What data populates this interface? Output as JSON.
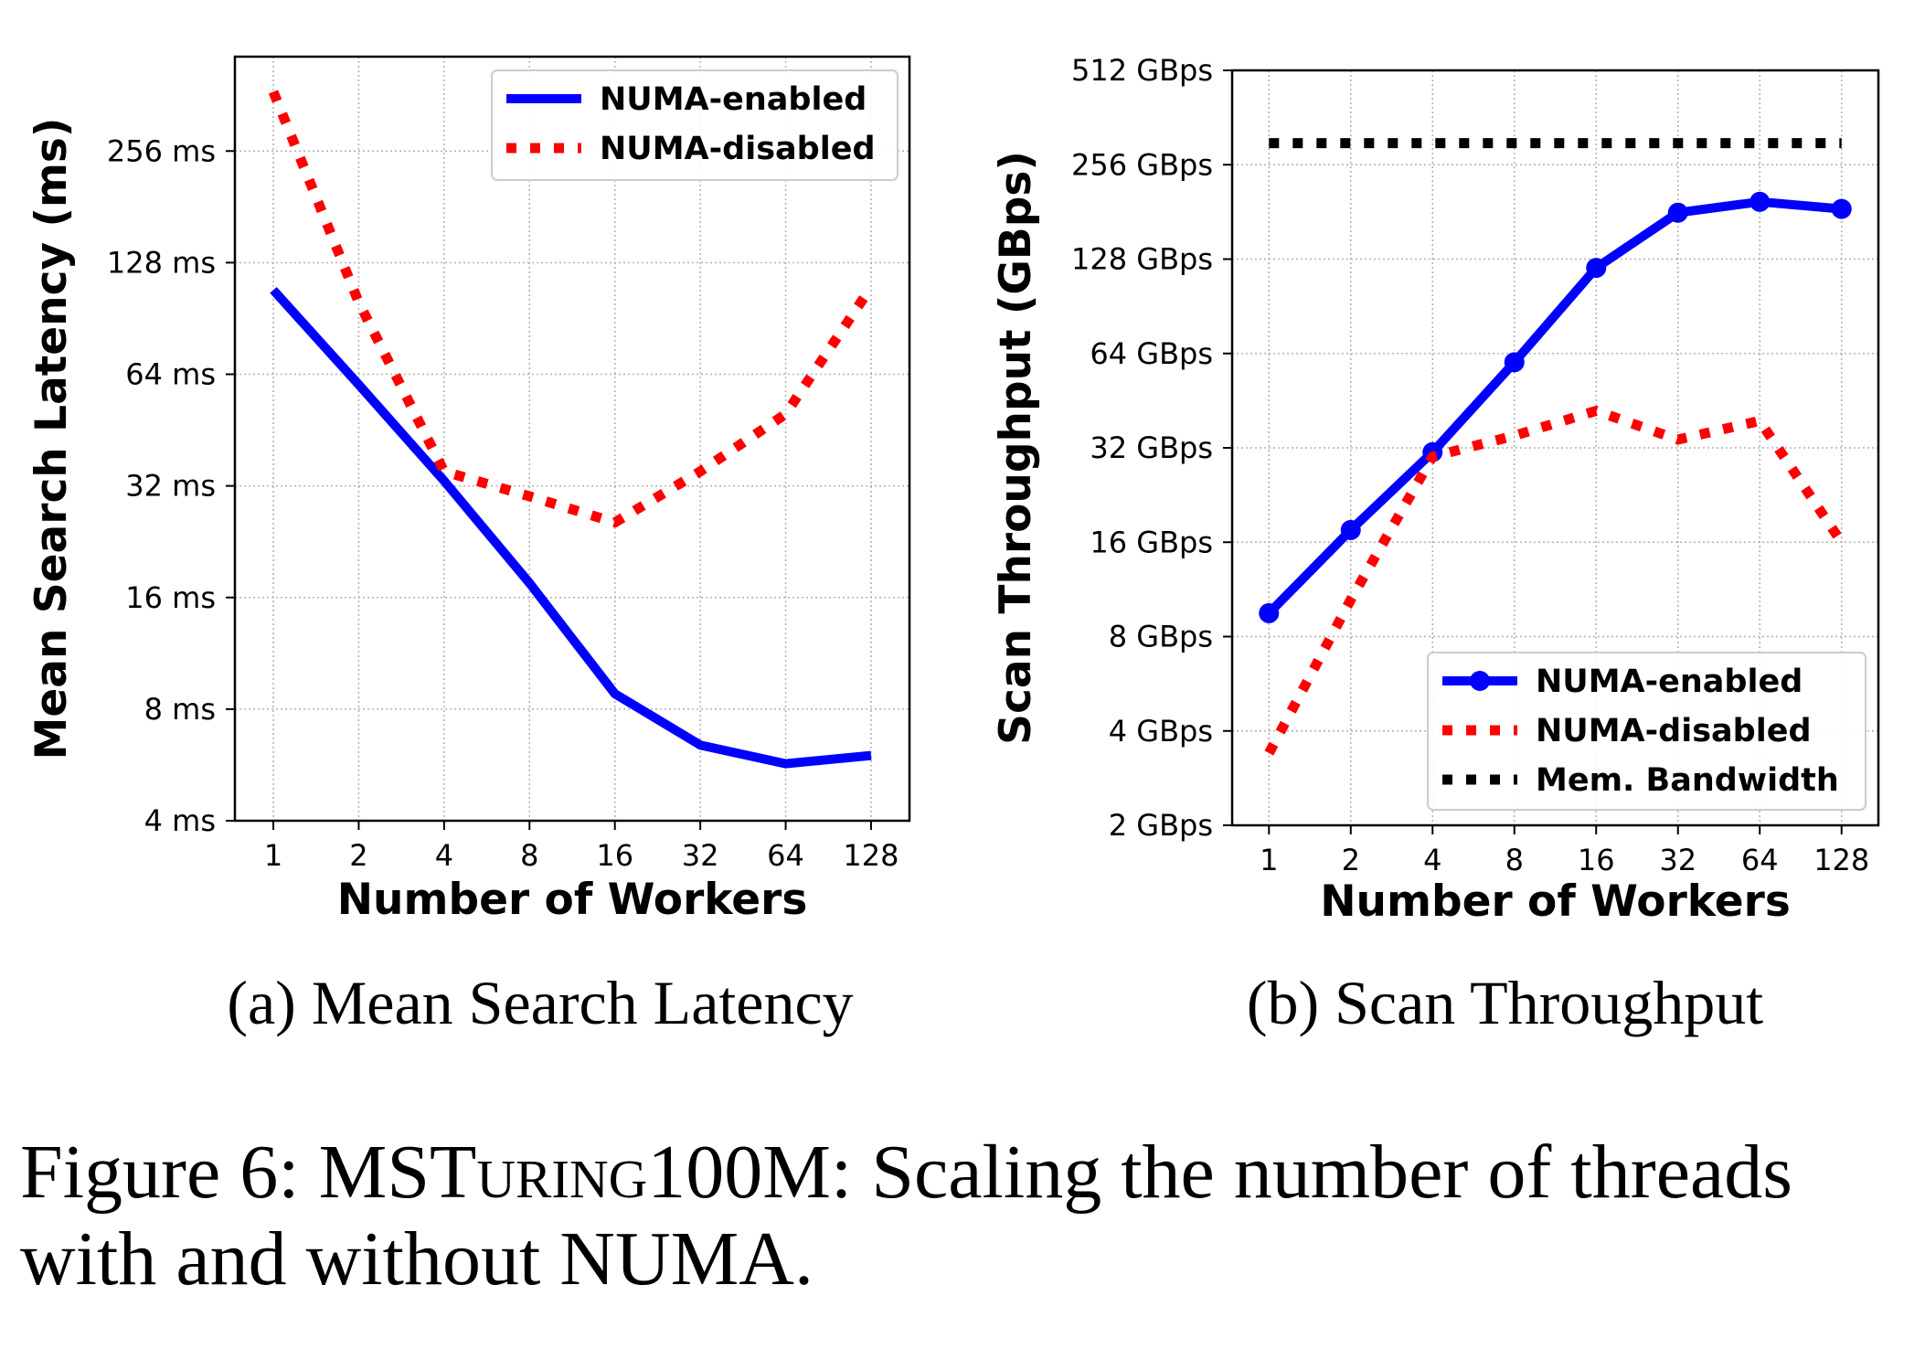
{
  "chart_data": [
    {
      "type": "line",
      "caption": "(a) Mean Search Latency",
      "xlabel": "Number of Workers",
      "ylabel": "Mean Search Latency (ms)",
      "x_scale": "log2",
      "y_scale": "log2",
      "x": [
        1,
        2,
        4,
        8,
        16,
        32,
        64,
        128
      ],
      "x_tick_labels": [
        "1",
        "2",
        "4",
        "8",
        "16",
        "32",
        "64",
        "128"
      ],
      "y_ticks": [
        4,
        8,
        16,
        32,
        64,
        128,
        256
      ],
      "y_tick_labels": [
        "4 ms",
        "8 ms",
        "16 ms",
        "32 ms",
        "64 ms",
        "128 ms",
        "256 ms"
      ],
      "ylim": [
        4,
        460
      ],
      "grid": true,
      "legend_position": "top-right",
      "series": [
        {
          "name": "NUMA-enabled",
          "color": "#0000ff",
          "style": "solid",
          "markers": false,
          "values": [
            108,
            60,
            33,
            17.5,
            8.8,
            6.4,
            5.7,
            6.0
          ]
        },
        {
          "name": "NUMA-disabled",
          "color": "#ff0000",
          "style": "dotted",
          "markers": false,
          "values": [
            370,
            100,
            35,
            30,
            25.5,
            35,
            50,
            110
          ]
        }
      ]
    },
    {
      "type": "line",
      "caption": "(b) Scan Throughput",
      "xlabel": "Number of Workers",
      "ylabel": "Scan Throughput (GBps)",
      "x_scale": "log2",
      "y_scale": "log2",
      "x": [
        1,
        2,
        4,
        8,
        16,
        32,
        64,
        128
      ],
      "x_tick_labels": [
        "1",
        "2",
        "4",
        "8",
        "16",
        "32",
        "64",
        "128"
      ],
      "y_ticks": [
        2,
        4,
        8,
        16,
        32,
        64,
        128,
        256,
        512
      ],
      "y_tick_labels": [
        "2 GBps",
        "4 GBps",
        "8 GBps",
        "16 GBps",
        "32 GBps",
        "64 GBps",
        "128 GBps",
        "256 GBps",
        "512 GBps"
      ],
      "ylim": [
        2,
        512
      ],
      "grid": true,
      "legend_position": "bottom-right",
      "series": [
        {
          "name": "NUMA-enabled",
          "color": "#0000ff",
          "style": "solid",
          "markers": true,
          "values": [
            9.5,
            17.5,
            31,
            60,
            120,
            180,
            195,
            185
          ]
        },
        {
          "name": "NUMA-disabled",
          "color": "#ff0000",
          "style": "dotted",
          "markers": false,
          "values": [
            3.4,
            10.5,
            30,
            35,
            42,
            34,
            39,
            16
          ]
        },
        {
          "name": "Mem. Bandwidth",
          "color": "#000000",
          "style": "dotted",
          "markers": false,
          "values": [
            300,
            300,
            300,
            300,
            300,
            300,
            300,
            300
          ]
        }
      ]
    }
  ],
  "figure_caption": {
    "prefix": "Figure 6: MST",
    "smallcaps": "uring",
    "suffix": "100M: Scaling the number of threads with and without NUMA."
  }
}
